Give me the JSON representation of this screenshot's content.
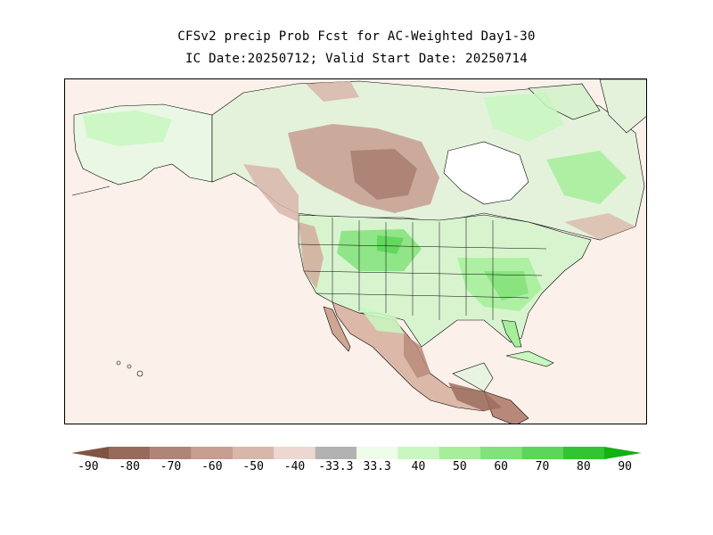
{
  "title": {
    "line1": "CFSv2 precip Prob Fcst for AC-Weighted Day1-30",
    "line2": "IC Date:20250712; Valid Start Date: 20250714"
  },
  "colorbar": {
    "bins": [
      {
        "color": "#7f5444"
      },
      {
        "color": "#986a5c"
      },
      {
        "color": "#b08476"
      },
      {
        "color": "#c69d90"
      },
      {
        "color": "#d8b6aa"
      },
      {
        "color": "#ecd8d0"
      },
      {
        "color": "#b2b2b2"
      },
      {
        "color": "#eefcea"
      },
      {
        "color": "#c8f7c0"
      },
      {
        "color": "#a6ee9a"
      },
      {
        "color": "#82e27a"
      },
      {
        "color": "#5cd658"
      },
      {
        "color": "#32c432"
      },
      {
        "color": "#14b014"
      }
    ],
    "labels": [
      "-90",
      "-80",
      "-70",
      "-60",
      "-50",
      "-40",
      "-33.3",
      "33.3",
      "40",
      "50",
      "60",
      "70",
      "80",
      "90"
    ]
  },
  "map": {
    "background_color": "#fbf0ea",
    "region": "North America"
  }
}
